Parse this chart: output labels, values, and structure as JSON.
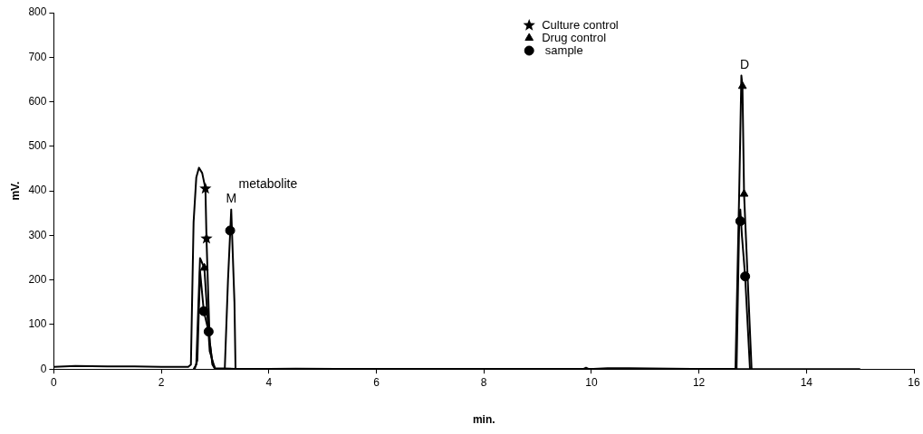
{
  "chart_data": {
    "type": "line",
    "xlabel": "min.",
    "ylabel": "mV.",
    "xlim": [
      0,
      16
    ],
    "xticks": [
      0,
      2,
      4,
      6,
      8,
      10,
      12,
      14,
      16
    ],
    "ylim": [
      0,
      800
    ],
    "yticks": [
      0,
      100,
      200,
      300,
      400,
      500,
      600,
      700,
      800
    ],
    "grid": false,
    "legend": "top",
    "line_style": "solid",
    "annotations": [
      "metabolite",
      {
        "text": "M",
        "x": 3.3,
        "y": 368
      },
      {
        "text": "D",
        "x": 12.85,
        "y": 668
      }
    ],
    "series": [
      {
        "marker": "none",
        "color": "#000000",
        "x": [
          0,
          0.4,
          1,
          1.5,
          2,
          2.5,
          2.55,
          2.6,
          2.65,
          2.7,
          2.76,
          2.82,
          2.84,
          2.9,
          2.95,
          3.0,
          3.5,
          4.5,
          6,
          8,
          9.85,
          9.9,
          9.95,
          10.3,
          10.7,
          12,
          15
        ],
        "values": [
          5,
          7,
          6,
          6,
          5,
          5,
          10,
          330,
          430,
          452,
          440,
          405,
          293,
          60,
          15,
          2,
          0,
          1,
          0,
          0,
          0,
          3,
          0,
          2,
          2,
          0,
          0
        ]
      },
      {
        "marker": "none",
        "color": "#000000",
        "x": [
          2.6,
          2.65,
          2.72,
          2.8,
          2.9,
          3.0,
          12.68,
          12.75,
          12.79,
          12.81,
          12.84,
          12.98
        ],
        "values": [
          0,
          10,
          249,
          227,
          40,
          0,
          0,
          400,
          659,
          635,
          393,
          0
        ]
      },
      {
        "marker": "none",
        "color": "#000000",
        "x": [
          2.62,
          2.67,
          2.72,
          2.79,
          2.88,
          2.95,
          3.0,
          3.18,
          3.24,
          3.3,
          3.36,
          3.38,
          12.7,
          12.75,
          12.77,
          12.8,
          12.86,
          12.95
        ],
        "values": [
          0,
          20,
          220,
          130,
          84,
          10,
          0,
          0,
          200,
          358,
          150,
          0,
          0,
          332,
          358,
          300,
          208,
          0
        ]
      },
      {
        "type": "scatter",
        "name": "Culture control",
        "marker": "star",
        "color": "#000000",
        "x": [
          2.82,
          2.84
        ],
        "values": [
          405,
          293
        ]
      },
      {
        "type": "scatter",
        "name": "Drug control",
        "marker": "triangle",
        "color": "#000000",
        "x": [
          2.8,
          12.81,
          12.84
        ],
        "values": [
          227,
          635,
          393
        ]
      },
      {
        "type": "scatter",
        "name": " sample",
        "marker": "circle",
        "color": "#000000",
        "x": [
          2.79,
          2.88,
          3.28,
          12.77,
          12.86
        ],
        "values": [
          130,
          84,
          311,
          332,
          208
        ]
      }
    ]
  }
}
